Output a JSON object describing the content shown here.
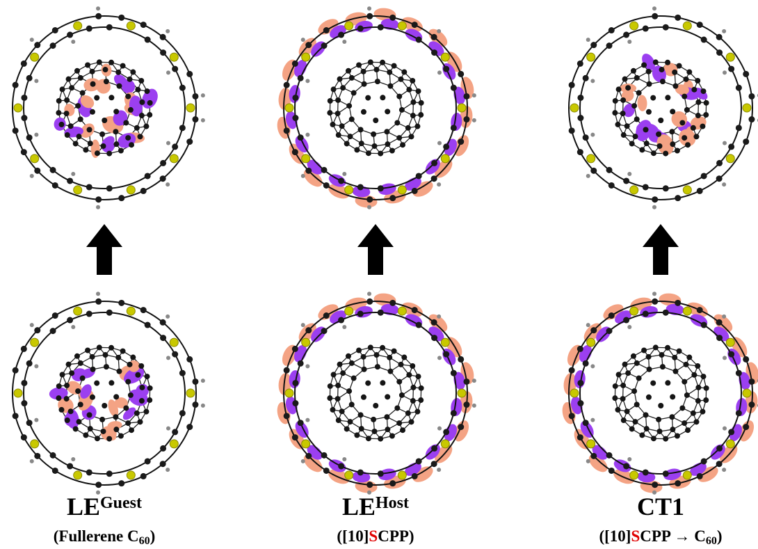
{
  "panels": [
    {
      "label": {
        "main": "LE",
        "sup": "Guest"
      },
      "caption": [
        {
          "text": "(Fullerene C",
          "kind": "normal"
        },
        {
          "text": "60",
          "kind": "sub"
        },
        {
          "text": ")",
          "kind": "normal"
        }
      ]
    },
    {
      "label": {
        "main": "LE",
        "sup": "Host"
      },
      "caption": [
        {
          "text": "([10]",
          "kind": "normal"
        },
        {
          "text": "S",
          "kind": "red"
        },
        {
          "text": "CPP)",
          "kind": "normal"
        }
      ]
    },
    {
      "label": {
        "main": "CT1",
        "sup": null
      },
      "caption": [
        {
          "text": "([10]",
          "kind": "normal"
        },
        {
          "text": "S",
          "kind": "red"
        },
        {
          "text": "CPP → C",
          "kind": "normal"
        },
        {
          "text": "60",
          "kind": "sub"
        },
        {
          "text": ")",
          "kind": "normal"
        }
      ]
    }
  ]
}
